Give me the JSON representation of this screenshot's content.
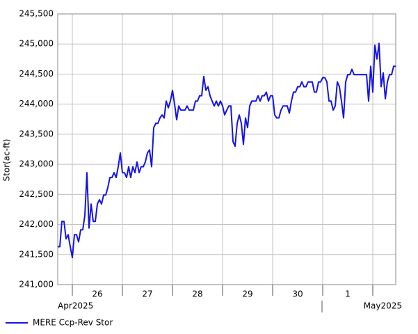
{
  "chart_data": {
    "type": "line",
    "y_label": "Stor(ac-ft)",
    "month_labels": [
      "Apr2025",
      "May2025"
    ],
    "x": [
      -7,
      -6,
      -5,
      -4,
      -3,
      -2,
      -1,
      0,
      1,
      2,
      3,
      4,
      5,
      6,
      7,
      8,
      9,
      10,
      11,
      12,
      13,
      14,
      15,
      16,
      17,
      18,
      19,
      20,
      21,
      22,
      23,
      24,
      25,
      26,
      27,
      28,
      29,
      30,
      31,
      32,
      33,
      34,
      35,
      36,
      37,
      38,
      39,
      40,
      41,
      42,
      43,
      44,
      45,
      46,
      47,
      48,
      49,
      50,
      51,
      52,
      53,
      54,
      55,
      56,
      57,
      58,
      59,
      60,
      61,
      62,
      63,
      64,
      65,
      66,
      67,
      68,
      69,
      70,
      71,
      72,
      73,
      74,
      75,
      76,
      77,
      78,
      79,
      80,
      81,
      82,
      83,
      84,
      85,
      86,
      87,
      88,
      89,
      90,
      91,
      92,
      93,
      94,
      95,
      96,
      97,
      98,
      99,
      100,
      101,
      102,
      103,
      104,
      105,
      106,
      107,
      108,
      109,
      110,
      111,
      112,
      113,
      114,
      115,
      116,
      117,
      118,
      119,
      120,
      121,
      122,
      123,
      124,
      125,
      126,
      127,
      128,
      129,
      130,
      131,
      132,
      133,
      134,
      135,
      136,
      137,
      138,
      139,
      140,
      141,
      142,
      143,
      144,
      145,
      146,
      147,
      148,
      149,
      150,
      151,
      152,
      153,
      154,
      155
    ],
    "series": [
      {
        "name": "MERE Ccp-Rev Stor",
        "color": "#1414e6",
        "values": [
          241630,
          241630,
          242050,
          242050,
          241760,
          241830,
          241630,
          241450,
          241830,
          241830,
          241710,
          241910,
          241910,
          242150,
          242860,
          241940,
          242340,
          242050,
          242050,
          242340,
          242410,
          242340,
          242490,
          242490,
          242610,
          242780,
          242780,
          242860,
          242780,
          242960,
          243190,
          242860,
          242860,
          242780,
          242960,
          242780,
          242960,
          242860,
          243040,
          242860,
          242960,
          242960,
          243040,
          243190,
          243240,
          242960,
          243610,
          243680,
          243680,
          243770,
          243820,
          243770,
          244050,
          243940,
          244050,
          244230,
          244000,
          243740,
          243970,
          243900,
          243900,
          243900,
          243970,
          243900,
          243900,
          243900,
          244050,
          244050,
          244140,
          244140,
          244460,
          244230,
          244290,
          244140,
          244050,
          243970,
          244050,
          243970,
          244050,
          243970,
          243820,
          243900,
          243970,
          243970,
          243380,
          243300,
          243680,
          243820,
          243680,
          243330,
          243770,
          243610,
          243970,
          244050,
          244050,
          244050,
          244140,
          244050,
          244140,
          244140,
          244200,
          244050,
          244140,
          244140,
          243820,
          243770,
          243770,
          243900,
          243970,
          243970,
          243970,
          243850,
          244050,
          244200,
          244200,
          244290,
          244290,
          244370,
          244290,
          244290,
          244370,
          244370,
          244370,
          244200,
          244200,
          244370,
          244370,
          244440,
          244440,
          244370,
          244050,
          244050,
          243900,
          243970,
          244370,
          244290,
          244050,
          243770,
          244370,
          244490,
          244490,
          244580,
          244490,
          244490,
          244490,
          244490,
          244490,
          244490,
          244490,
          244050,
          244630,
          244200,
          244980,
          244750,
          245010,
          244290,
          244520,
          244090,
          244370,
          244490,
          244490,
          244630,
          244630
        ]
      }
    ],
    "xlim": [
      -7,
      155
    ],
    "xticks": [
      {
        "value": 0,
        "label": "26"
      },
      {
        "value": 24,
        "label": "27"
      },
      {
        "value": 48,
        "label": "28"
      },
      {
        "value": 72,
        "label": "29"
      },
      {
        "value": 96,
        "label": "30"
      },
      {
        "value": 120,
        "label": "1"
      }
    ],
    "xgrid": [
      0,
      24,
      48,
      72,
      96,
      120,
      144
    ],
    "ylim": [
      241000,
      245500
    ],
    "yticks": [
      {
        "value": 241000,
        "label": "241,000"
      },
      {
        "value": 241500,
        "label": "241,500"
      },
      {
        "value": 242000,
        "label": "242,000"
      },
      {
        "value": 242500,
        "label": "242,500"
      },
      {
        "value": 243000,
        "label": "243,000"
      },
      {
        "value": 243500,
        "label": "243,500"
      },
      {
        "value": 244000,
        "label": "244,000"
      },
      {
        "value": 244500,
        "label": "244,500"
      },
      {
        "value": 245000,
        "label": "245,000"
      },
      {
        "value": 245500,
        "label": "245,500"
      }
    ],
    "grid": true
  }
}
